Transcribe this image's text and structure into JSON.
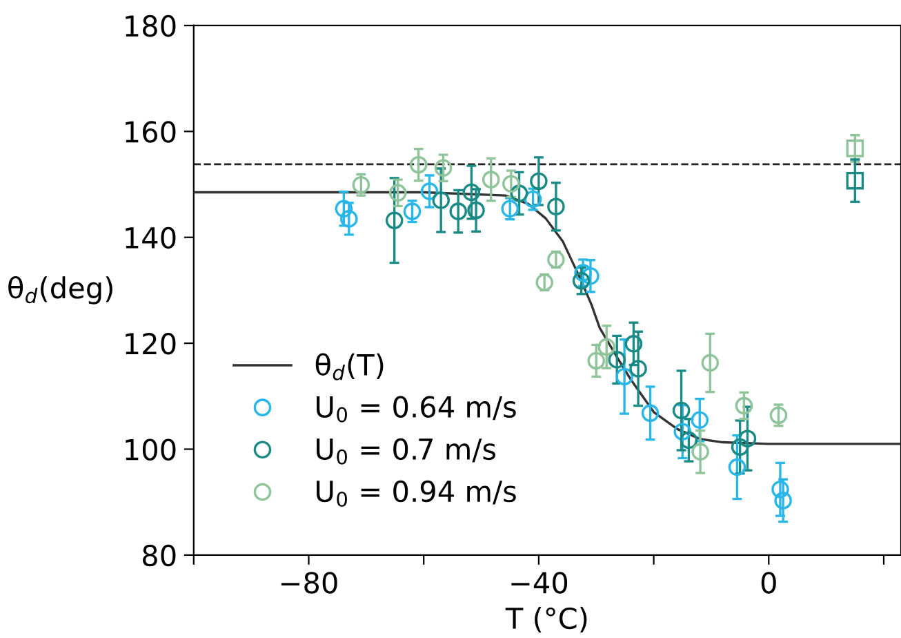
{
  "chart_data": {
    "type": "scatter",
    "xlabel": "T (°C)",
    "ylabel": "θ$_{d}$(deg)",
    "xlim": [
      -100,
      23
    ],
    "ylim": [
      80,
      180
    ],
    "xticks": [
      {
        "value": -100,
        "label": null
      },
      {
        "value": -80,
        "label": "−80"
      },
      {
        "value": -60,
        "label": null
      },
      {
        "value": -40,
        "label": "−40"
      },
      {
        "value": -20,
        "label": null
      },
      {
        "value": 0,
        "label": "0"
      },
      {
        "value": 20,
        "label": null
      }
    ],
    "yticks": [
      80,
      100,
      120,
      140,
      160,
      180
    ],
    "grid": false,
    "legend": "bottom left",
    "marker": "circle",
    "ref_lines": [
      {
        "axis": "y",
        "value": 153.8,
        "color": "#222222",
        "line_style": "dashed"
      }
    ],
    "series": [
      {
        "name": "θ$_{d}$(T)",
        "type": "line",
        "color": "#333333",
        "marker": "none",
        "line_style": "solid",
        "x": [
          -100,
          -60,
          -45.8,
          -41.8,
          -38.8,
          -35.8,
          -32.6,
          -30.8,
          -29.4,
          -26.4,
          -23.9,
          -20,
          -15.9,
          -11.9,
          -8,
          0,
          23
        ],
        "values": [
          148.5,
          148.5,
          147.9,
          146.3,
          143.6,
          139.2,
          131.8,
          127.2,
          122.9,
          117.4,
          113.0,
          107.0,
          103.8,
          101.9,
          101.3,
          101.0,
          101.0
        ]
      },
      {
        "name": "U$_{0}$ = 0.64 m/s",
        "color": "#29b6e8",
        "x": [
          -73.9,
          -73.0,
          -62.0,
          -59.0,
          -45.0,
          -41.0,
          -32.3,
          -31.0,
          -25.1,
          -20.6,
          -15.0,
          -12.0,
          -5.5,
          2.0,
          2.5
        ],
        "values": [
          145.4,
          143.5,
          144.9,
          148.7,
          145.4,
          147.2,
          133.3,
          132.7,
          113.7,
          106.8,
          103.3,
          105.5,
          96.6,
          92.4,
          90.3
        ],
        "errors": [
          3.2,
          3,
          2,
          3,
          2,
          2,
          2.5,
          3,
          7,
          5,
          5,
          4,
          6,
          5,
          4
        ]
      },
      {
        "name": "U$_{0}$ = 0.7 m/s",
        "color": "#1a8a85",
        "x": [
          -65.1,
          -57.0,
          -54.0,
          -51.7,
          -50.9,
          -43.4,
          -40.0,
          -37.0,
          -32.6,
          -26.4,
          -23.5,
          -22.7,
          -15.2,
          -13.9,
          -5.0,
          -3.7
        ],
        "values": [
          143.2,
          147.0,
          144.9,
          148.5,
          145.1,
          148.3,
          150.6,
          145.8,
          131.8,
          116.9,
          119.9,
          115.2,
          107.3,
          101.7,
          100.4,
          102.0
        ],
        "errors": [
          8,
          6,
          4,
          5,
          4,
          4,
          4.5,
          4.5,
          2.5,
          4.5,
          4,
          7,
          7.5,
          4,
          5,
          6
        ]
      },
      {
        "name": "U$_{0}$ = 0.94 m/s",
        "color": "#8fc49a",
        "x": [
          -70.9,
          -64.5,
          -60.9,
          -56.6,
          -48.3,
          -44.8,
          -39.0,
          -37.0,
          -30.0,
          -28.2,
          -11.9,
          -10.2,
          -4.3,
          1.7
        ],
        "values": [
          149.9,
          148.4,
          153.7,
          153.1,
          150.9,
          150.1,
          131.5,
          135.8,
          116.7,
          119.3,
          99.5,
          116.3,
          108.2,
          106.4
        ],
        "errors": [
          2,
          2.5,
          3,
          2.5,
          4,
          2.5,
          1.5,
          1.5,
          3,
          4,
          4,
          5.5,
          2.5,
          2
        ]
      },
      {
        "color": "#8fc49a",
        "marker": "square",
        "x": [
          15.0
        ],
        "values": [
          156.8
        ],
        "errors": [
          2.5
        ]
      },
      {
        "color": "#1a8a85",
        "marker": "square",
        "x": [
          15.0
        ],
        "values": [
          150.7
        ],
        "errors": [
          4
        ]
      }
    ]
  }
}
